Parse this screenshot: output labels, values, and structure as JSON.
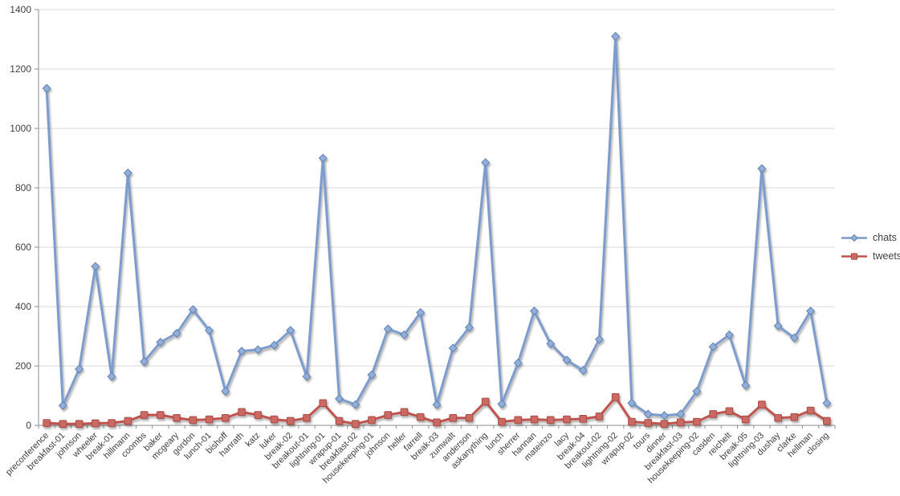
{
  "chart_data": {
    "type": "line",
    "title": "",
    "xlabel": "",
    "ylabel": "",
    "ylim": [
      0,
      1400
    ],
    "ytick_step": 200,
    "grid": true,
    "legend_position": "right",
    "categories": [
      "preconference",
      "breakfast-01",
      "johnson",
      "wheeler",
      "break-01",
      "hillmann",
      "coombs",
      "baker",
      "mcgeary",
      "gordon",
      "lunch-01",
      "bishoff",
      "hanrath",
      "katz",
      "luker",
      "break-02",
      "breakout-01",
      "lightning-01",
      "wrapup-01",
      "breakfast-02",
      "housekeeping-01",
      "johnson",
      "heller",
      "farrell",
      "break-03",
      "zumwalt",
      "anderson",
      "askanything",
      "lunch",
      "sherrer",
      "hannan",
      "mateinzo",
      "lacy",
      "break-04",
      "breakout-02",
      "lightning-02",
      "wrapup-02",
      "tours",
      "dinner",
      "breakfast-03",
      "housekeeping-02",
      "casden",
      "reichelt",
      "break-05",
      "lightning-03",
      "dushay",
      "clarke",
      "hellman",
      "closing"
    ],
    "series": [
      {
        "name": "chats",
        "marker": "diamond",
        "color": "#7D9CCE",
        "marker_fill": "#93AFD9",
        "marker_stroke": "#5E82B6",
        "values": [
          1135,
          67,
          190,
          535,
          165,
          850,
          215,
          280,
          310,
          390,
          320,
          115,
          250,
          255,
          270,
          320,
          165,
          900,
          90,
          70,
          170,
          325,
          305,
          380,
          70,
          260,
          330,
          885,
          72,
          210,
          385,
          275,
          220,
          185,
          290,
          1310,
          75,
          38,
          33,
          38,
          115,
          265,
          305,
          135,
          865,
          335,
          295,
          385,
          75
        ]
      },
      {
        "name": "tweets",
        "marker": "square",
        "color": "#C0534E",
        "marker_fill": "#CA6A62",
        "marker_stroke": "#A84A44",
        "values": [
          8,
          5,
          5,
          7,
          8,
          15,
          35,
          35,
          25,
          18,
          20,
          25,
          45,
          35,
          20,
          15,
          25,
          75,
          15,
          5,
          18,
          35,
          45,
          28,
          10,
          25,
          25,
          80,
          12,
          18,
          20,
          18,
          20,
          22,
          30,
          95,
          12,
          8,
          5,
          10,
          12,
          38,
          48,
          20,
          70,
          25,
          28,
          50,
          15
        ]
      }
    ],
    "axis_color": "#8E8E8E",
    "grid_color": "#D9D9D9"
  }
}
